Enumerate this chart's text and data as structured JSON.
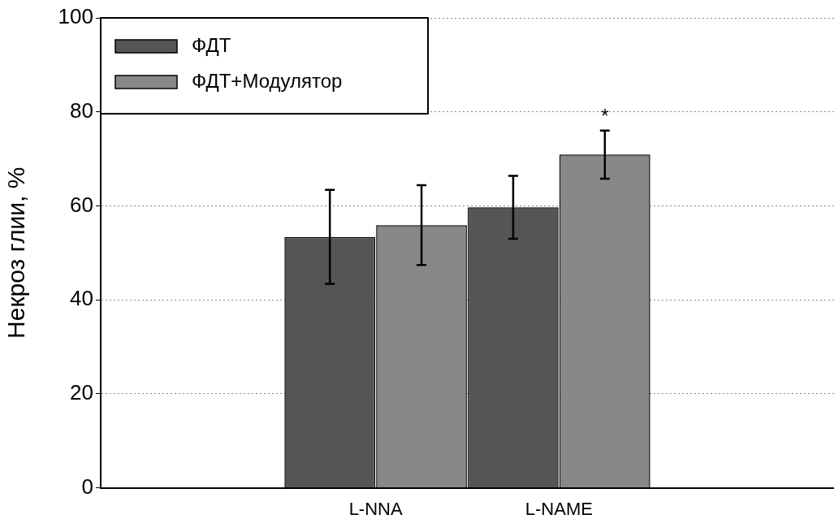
{
  "chart_data": {
    "type": "bar",
    "ylabel": "Некроз глии, %",
    "categories": [
      null,
      "L-NNA",
      "L-NAME",
      null
    ],
    "series": [
      {
        "name": "ФДТ",
        "color": "#555555",
        "values": [
          null,
          53.4,
          59.7,
          null
        ],
        "errors": [
          null,
          10,
          6.7,
          null
        ]
      },
      {
        "name": "ФДТ+Модулятор",
        "color": "#888888",
        "values": [
          null,
          55.9,
          70.9,
          null
        ],
        "errors": [
          null,
          8.5,
          5.1,
          null
        ]
      }
    ],
    "ylim": [
      0,
      100
    ],
    "yticks": [
      0,
      20,
      40,
      60,
      80,
      100
    ],
    "grid": "y",
    "legend": "top left",
    "annotations": [
      "*"
    ]
  }
}
